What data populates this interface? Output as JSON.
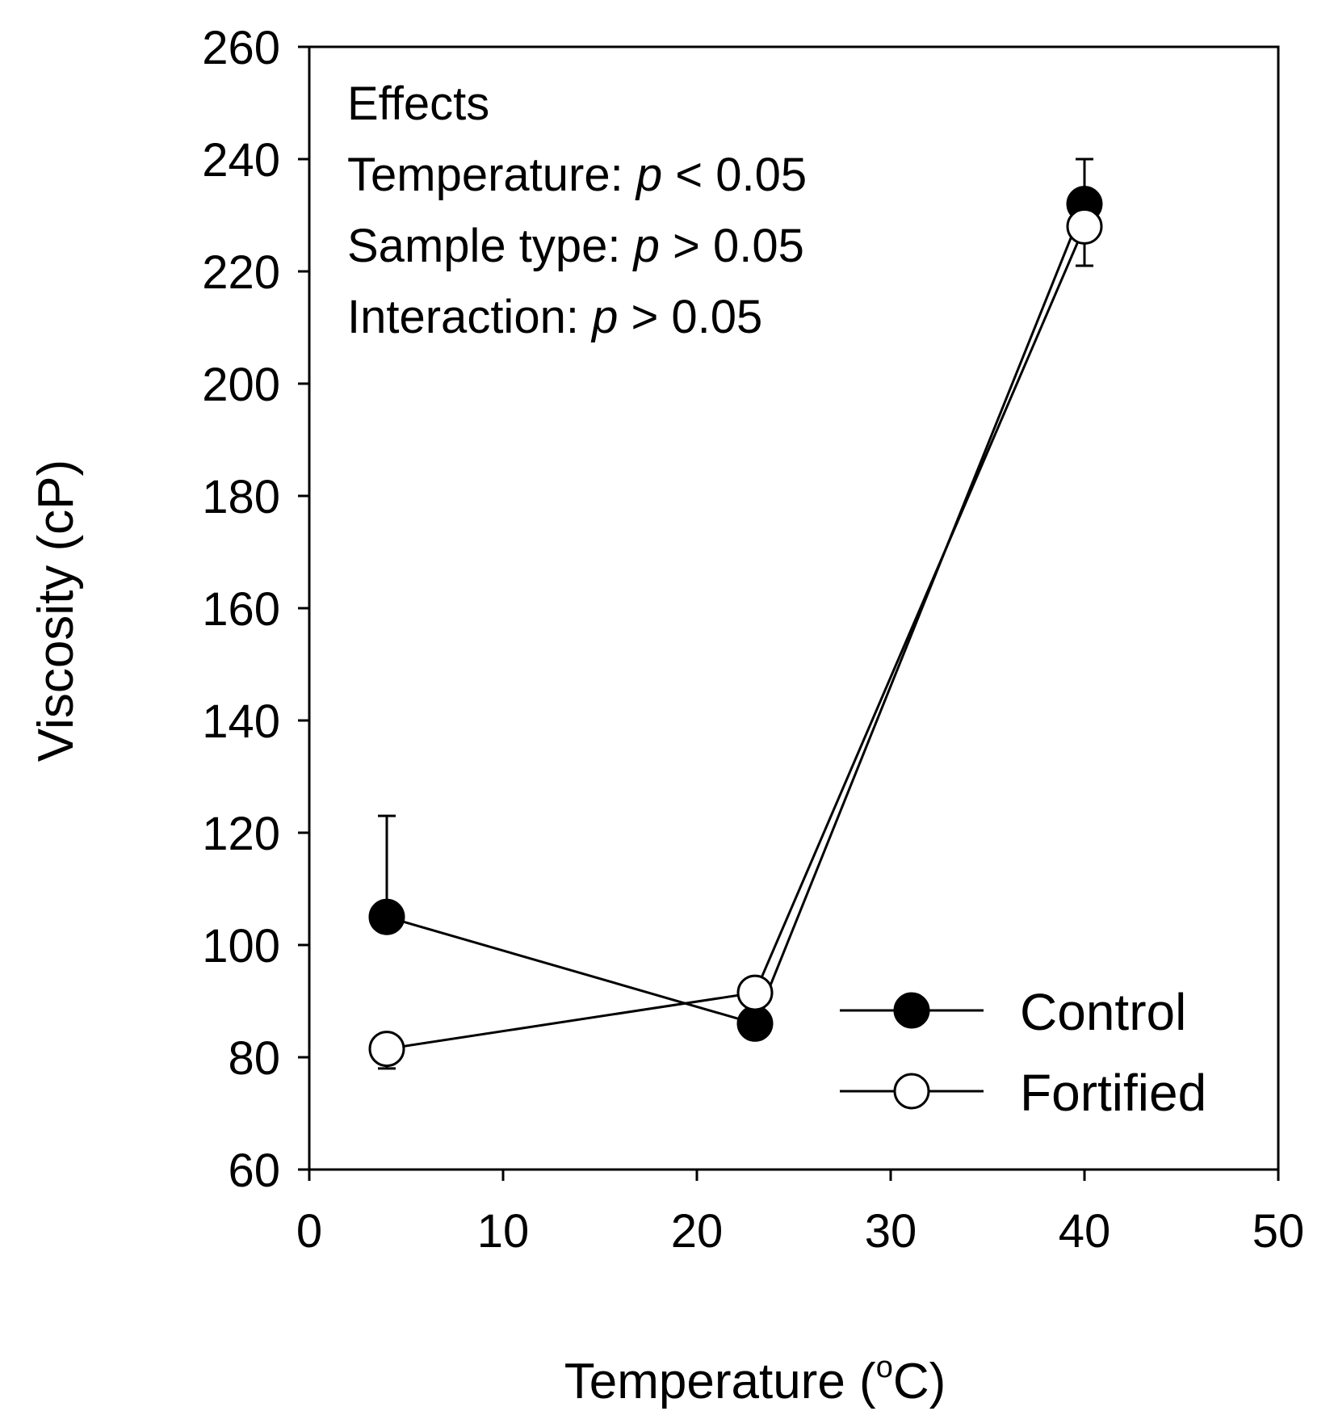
{
  "chart_data": {
    "type": "line",
    "title": "",
    "xlabel": "Temperature (",
    "xlabel_sup": "o",
    "xlabel_end": "C)",
    "ylabel": "Viscosity (cP)",
    "xlim": [
      0,
      50
    ],
    "ylim": [
      60,
      260
    ],
    "xticks": [
      0,
      10,
      20,
      30,
      40,
      50
    ],
    "yticks": [
      60,
      80,
      100,
      120,
      140,
      160,
      180,
      200,
      220,
      240,
      260
    ],
    "grid": false,
    "legend_position": "bottom-right",
    "series": [
      {
        "name": "Control",
        "marker": "filled-circle",
        "color": "#000000",
        "x": [
          4,
          23,
          40
        ],
        "y": [
          105,
          86,
          232
        ],
        "error": [
          18,
          5,
          8
        ]
      },
      {
        "name": "Fortified",
        "marker": "open-circle",
        "color": "#ffffff",
        "x": [
          4,
          23,
          40
        ],
        "y": [
          81.5,
          91.5,
          228
        ],
        "error": [
          3.5,
          3.5,
          7
        ]
      }
    ],
    "annotations": {
      "heading": "Effects",
      "lines": [
        {
          "label": "Temperature:  ",
          "p": "p",
          "rel": " < 0.05"
        },
        {
          "label": "Sample type: ",
          "p": "p",
          "rel": " > 0.05"
        },
        {
          "label": "Interaction: ",
          "p": "p",
          "rel": " > 0.05"
        }
      ]
    }
  }
}
